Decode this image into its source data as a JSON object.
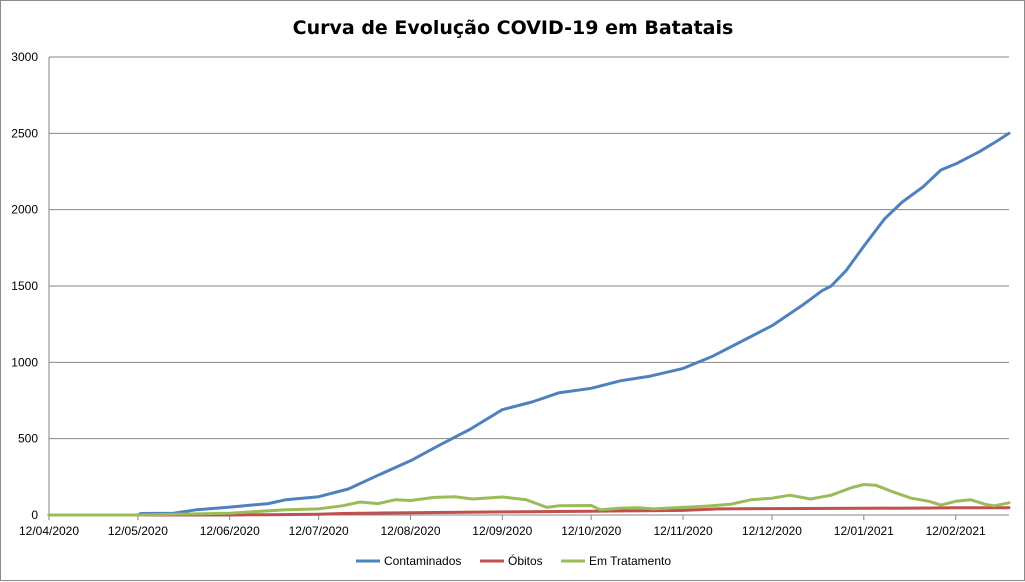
{
  "chart_data": {
    "type": "line",
    "title": "Curva de Evolução COVID-19 em Batatais",
    "xlabel": "",
    "ylabel": "",
    "ylim": [
      0,
      3000
    ],
    "y_ticks": [
      "0",
      "500",
      "1000",
      "1500",
      "2000",
      "2500",
      "3000"
    ],
    "x_range": [
      "2020-04-12",
      "2021-03-02"
    ],
    "x_ticks": [
      {
        "date": "2020-04-12",
        "label": "12/04/2020"
      },
      {
        "date": "2020-05-12",
        "label": "12/05/2020"
      },
      {
        "date": "2020-06-12",
        "label": "12/06/2020"
      },
      {
        "date": "2020-07-12",
        "label": "12/07/2020"
      },
      {
        "date": "2020-08-12",
        "label": "12/08/2020"
      },
      {
        "date": "2020-09-12",
        "label": "12/09/2020"
      },
      {
        "date": "2020-10-12",
        "label": "12/10/2020"
      },
      {
        "date": "2020-11-12",
        "label": "12/11/2020"
      },
      {
        "date": "2020-12-12",
        "label": "12/12/2020"
      },
      {
        "date": "2021-01-12",
        "label": "12/01/2021"
      },
      {
        "date": "2021-02-12",
        "label": "12/02/2021"
      }
    ],
    "grid": true,
    "legend_position": "bottom",
    "series": [
      {
        "name": "Contaminados",
        "color": "#4f81bd",
        "points": [
          [
            "2020-04-12",
            0
          ],
          [
            "2020-05-12",
            0
          ],
          [
            "2020-05-13",
            10
          ],
          [
            "2020-05-24",
            12
          ],
          [
            "2020-06-01",
            35
          ],
          [
            "2020-06-12",
            52
          ],
          [
            "2020-06-25",
            75
          ],
          [
            "2020-07-01",
            100
          ],
          [
            "2020-07-12",
            120
          ],
          [
            "2020-07-22",
            170
          ],
          [
            "2020-08-01",
            260
          ],
          [
            "2020-08-12",
            355
          ],
          [
            "2020-08-22",
            460
          ],
          [
            "2020-09-01",
            560
          ],
          [
            "2020-09-12",
            690
          ],
          [
            "2020-09-22",
            740
          ],
          [
            "2020-10-01",
            800
          ],
          [
            "2020-10-12",
            830
          ],
          [
            "2020-10-22",
            880
          ],
          [
            "2020-11-01",
            910
          ],
          [
            "2020-11-12",
            960
          ],
          [
            "2020-11-22",
            1040
          ],
          [
            "2020-12-01",
            1130
          ],
          [
            "2020-12-12",
            1240
          ],
          [
            "2020-12-22",
            1370
          ],
          [
            "2020-12-29",
            1470
          ],
          [
            "2021-01-01",
            1500
          ],
          [
            "2021-01-06",
            1600
          ],
          [
            "2021-01-12",
            1760
          ],
          [
            "2021-01-19",
            1940
          ],
          [
            "2021-01-25",
            2050
          ],
          [
            "2021-02-01",
            2150
          ],
          [
            "2021-02-07",
            2260
          ],
          [
            "2021-02-12",
            2300
          ],
          [
            "2021-02-20",
            2380
          ],
          [
            "2021-02-26",
            2450
          ],
          [
            "2021-03-02",
            2500
          ]
        ]
      },
      {
        "name": "Óbitos",
        "color": "#c0504d",
        "points": [
          [
            "2020-04-12",
            0
          ],
          [
            "2020-06-12",
            0
          ],
          [
            "2020-06-25",
            2
          ],
          [
            "2020-07-12",
            5
          ],
          [
            "2020-07-20",
            10
          ],
          [
            "2020-08-12",
            15
          ],
          [
            "2020-09-12",
            20
          ],
          [
            "2020-10-12",
            25
          ],
          [
            "2020-11-12",
            30
          ],
          [
            "2020-11-24",
            40
          ],
          [
            "2020-12-12",
            42
          ],
          [
            "2021-01-12",
            44
          ],
          [
            "2021-02-04",
            46
          ],
          [
            "2021-02-12",
            48
          ],
          [
            "2021-03-02",
            48
          ]
        ]
      },
      {
        "name": "Em Tratamento",
        "color": "#9bbb59",
        "points": [
          [
            "2020-04-12",
            0
          ],
          [
            "2020-05-12",
            0
          ],
          [
            "2020-05-20",
            3
          ],
          [
            "2020-06-12",
            12
          ],
          [
            "2020-07-01",
            35
          ],
          [
            "2020-07-12",
            40
          ],
          [
            "2020-07-20",
            60
          ],
          [
            "2020-07-26",
            85
          ],
          [
            "2020-08-01",
            75
          ],
          [
            "2020-08-07",
            100
          ],
          [
            "2020-08-12",
            95
          ],
          [
            "2020-08-20",
            115
          ],
          [
            "2020-08-27",
            120
          ],
          [
            "2020-09-02",
            105
          ],
          [
            "2020-09-12",
            118
          ],
          [
            "2020-09-20",
            100
          ],
          [
            "2020-09-27",
            50
          ],
          [
            "2020-10-01",
            60
          ],
          [
            "2020-10-12",
            62
          ],
          [
            "2020-10-15",
            35
          ],
          [
            "2020-10-22",
            45
          ],
          [
            "2020-10-28",
            48
          ],
          [
            "2020-11-02",
            40
          ],
          [
            "2020-11-12",
            50
          ],
          [
            "2020-11-20",
            58
          ],
          [
            "2020-11-28",
            70
          ],
          [
            "2020-12-05",
            100
          ],
          [
            "2020-12-12",
            110
          ],
          [
            "2020-12-18",
            130
          ],
          [
            "2020-12-25",
            105
          ],
          [
            "2021-01-01",
            130
          ],
          [
            "2021-01-08",
            180
          ],
          [
            "2021-01-12",
            200
          ],
          [
            "2021-01-16",
            195
          ],
          [
            "2021-01-22",
            150
          ],
          [
            "2021-01-28",
            110
          ],
          [
            "2021-02-03",
            90
          ],
          [
            "2021-02-07",
            65
          ],
          [
            "2021-02-12",
            90
          ],
          [
            "2021-02-17",
            100
          ],
          [
            "2021-02-22",
            70
          ],
          [
            "2021-02-25",
            60
          ],
          [
            "2021-03-02",
            80
          ]
        ]
      }
    ]
  }
}
